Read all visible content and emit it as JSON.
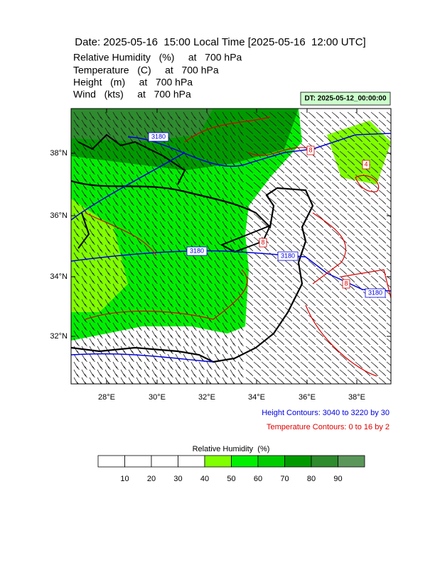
{
  "header": {
    "title": "Date: 2025-05-16  15:00 Local Time [2025-05-16  12:00 UTC]",
    "lines": [
      "Relative Humidity   (%)     at   700 hPa",
      "Temperature   (C)     at   700 hPa",
      "Height   (m)     at   700 hPa",
      "Wind   (kts)     at   700 hPa"
    ],
    "dt": "DT: 2025-05-12_00:00:00"
  },
  "map": {
    "lat_labels": [
      "38°N",
      "36°N",
      "34°N",
      "32°N"
    ],
    "lon_labels": [
      "28°E",
      "30°E",
      "32°E",
      "34°E",
      "36°E",
      "38°E"
    ],
    "contour_labels": [
      "3180",
      "3180",
      "3180",
      "3180",
      "8",
      "8",
      "4",
      "8"
    ]
  },
  "notes": {
    "height": "Height Contours: 3040 to 3220 by 30",
    "temperature": "Temperature Contours: 0 to 16 by 2"
  },
  "colorbar": {
    "title": "Relative Humidity  (%)",
    "colors": [
      "#ffffff",
      "#ffffff",
      "#ffffff",
      "#ffffff",
      "#80ff00",
      "#00f000",
      "#00cc00",
      "#009a00",
      "#2e8b2e",
      "#5a965a"
    ],
    "ticks": [
      10,
      20,
      30,
      40,
      50,
      60,
      70,
      80,
      90
    ]
  }
}
